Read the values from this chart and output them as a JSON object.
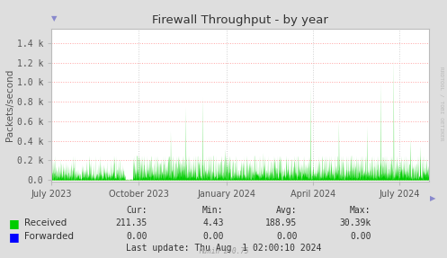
{
  "title": "Firewall Throughput - by year",
  "ylabel": "Packets/second",
  "background_color": "#dedede",
  "plot_bg_color": "#ffffff",
  "grid_color": "#ff9999",
  "grid_dot_color": "#cccccc",
  "title_color": "#333333",
  "axis_color": "#333333",
  "received_color": "#00cc00",
  "forwarded_color": "#0000ff",
  "yticks": [
    0.0,
    0.2,
    0.4,
    0.6,
    0.8,
    1.0,
    1.2,
    1.4
  ],
  "ytick_labels": [
    "0.0",
    "0.2 k",
    "0.4 k",
    "0.6 k",
    "0.8 k",
    "1.0 k",
    "1.2 k",
    "1.4 k"
  ],
  "xtick_labels": [
    "July 2023",
    "October 2023",
    "January 2024",
    "April 2024",
    "July 2024"
  ],
  "legend_received": "Received",
  "legend_forwarded": "Forwarded",
  "cur_received": "211.35",
  "min_received": "4.43",
  "avg_received": "188.95",
  "max_received": "30.39k",
  "cur_forwarded": "0.00",
  "min_forwarded": "0.00",
  "avg_forwarded": "0.00",
  "max_forwarded": "0.00",
  "last_update": "Last update: Thu Aug  1 02:00:10 2024",
  "munin_version": "Munin 2.0.75",
  "rrdtool_label": "RRDTOOL / TOBI OETIKER",
  "ylim_max": 1.55,
  "ylim_min": -0.02
}
